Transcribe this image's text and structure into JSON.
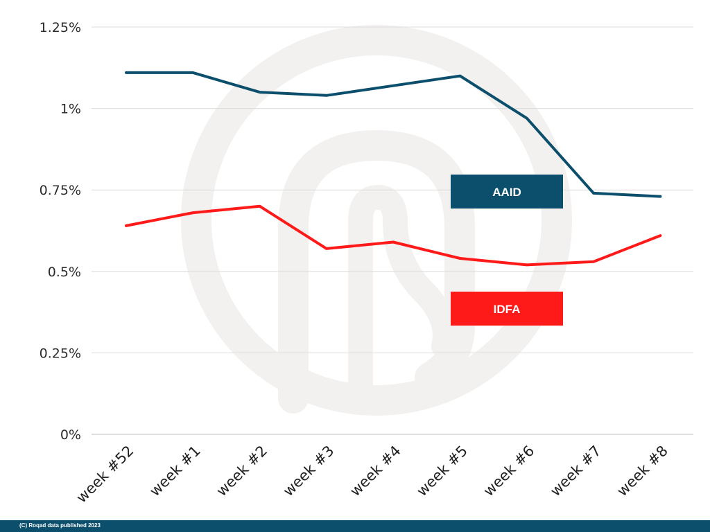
{
  "chart_data": {
    "type": "line",
    "categories": [
      "week #52",
      "week #1",
      "week #2",
      "week #3",
      "week #4",
      "week #5",
      "week #6",
      "week #7",
      "week #8"
    ],
    "series": [
      {
        "name": "AAID",
        "color": "#0b4f6c",
        "values": [
          1.11,
          1.11,
          1.05,
          1.04,
          1.07,
          1.1,
          0.97,
          0.74,
          0.73
        ]
      },
      {
        "name": "IDFA",
        "color": "#ff1a1a",
        "values": [
          0.64,
          0.68,
          0.7,
          0.57,
          0.59,
          0.54,
          0.52,
          0.53,
          0.61
        ]
      }
    ],
    "yticks": [
      0,
      0.25,
      0.5,
      0.75,
      1,
      1.25
    ],
    "ytick_labels": [
      "0%",
      "0.25%",
      "0.5%",
      "0.75%",
      "1%",
      "1.25%"
    ],
    "ylim": [
      0,
      1.25
    ],
    "grid": true,
    "legend": [
      {
        "label": "AAID",
        "color": "#0b4f6c"
      },
      {
        "label": "IDFA",
        "color": "#ff1a1a"
      }
    ]
  },
  "footer": {
    "text": "(C) Roqad data published 2023",
    "color": "#0b4f6c"
  }
}
